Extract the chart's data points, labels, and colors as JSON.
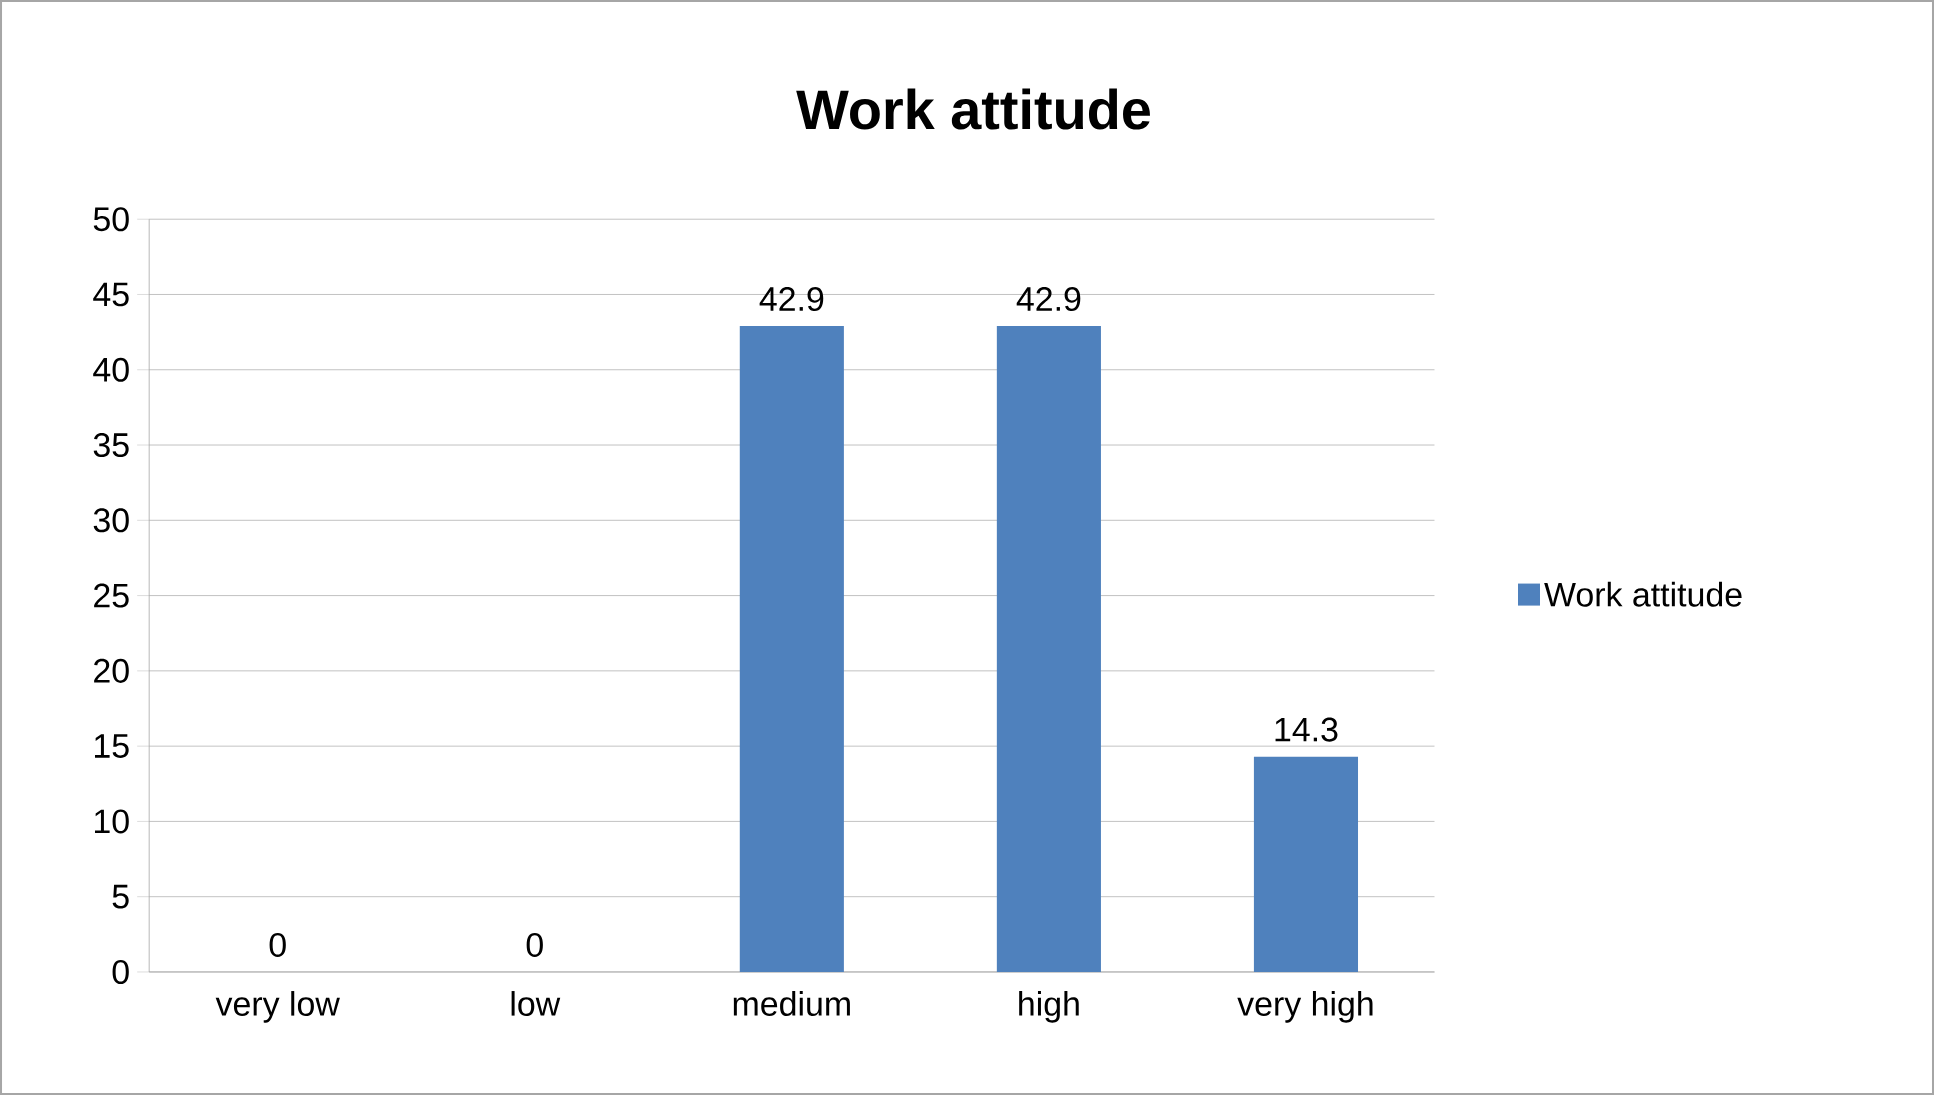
{
  "chart_data": {
    "type": "bar",
    "title": "Work attitude",
    "categories": [
      "very low",
      "low",
      "medium",
      "high",
      "very high"
    ],
    "series": [
      {
        "name": "Work attitude",
        "color": "#4f81bd",
        "values": [
          0,
          0,
          42.9,
          42.9,
          14.3
        ]
      }
    ],
    "ylim": [
      0,
      50
    ],
    "yticks": [
      0,
      5,
      10,
      15,
      20,
      25,
      30,
      35,
      40,
      45,
      50
    ],
    "grid": "y",
    "legend": "right",
    "data_labels": true
  }
}
